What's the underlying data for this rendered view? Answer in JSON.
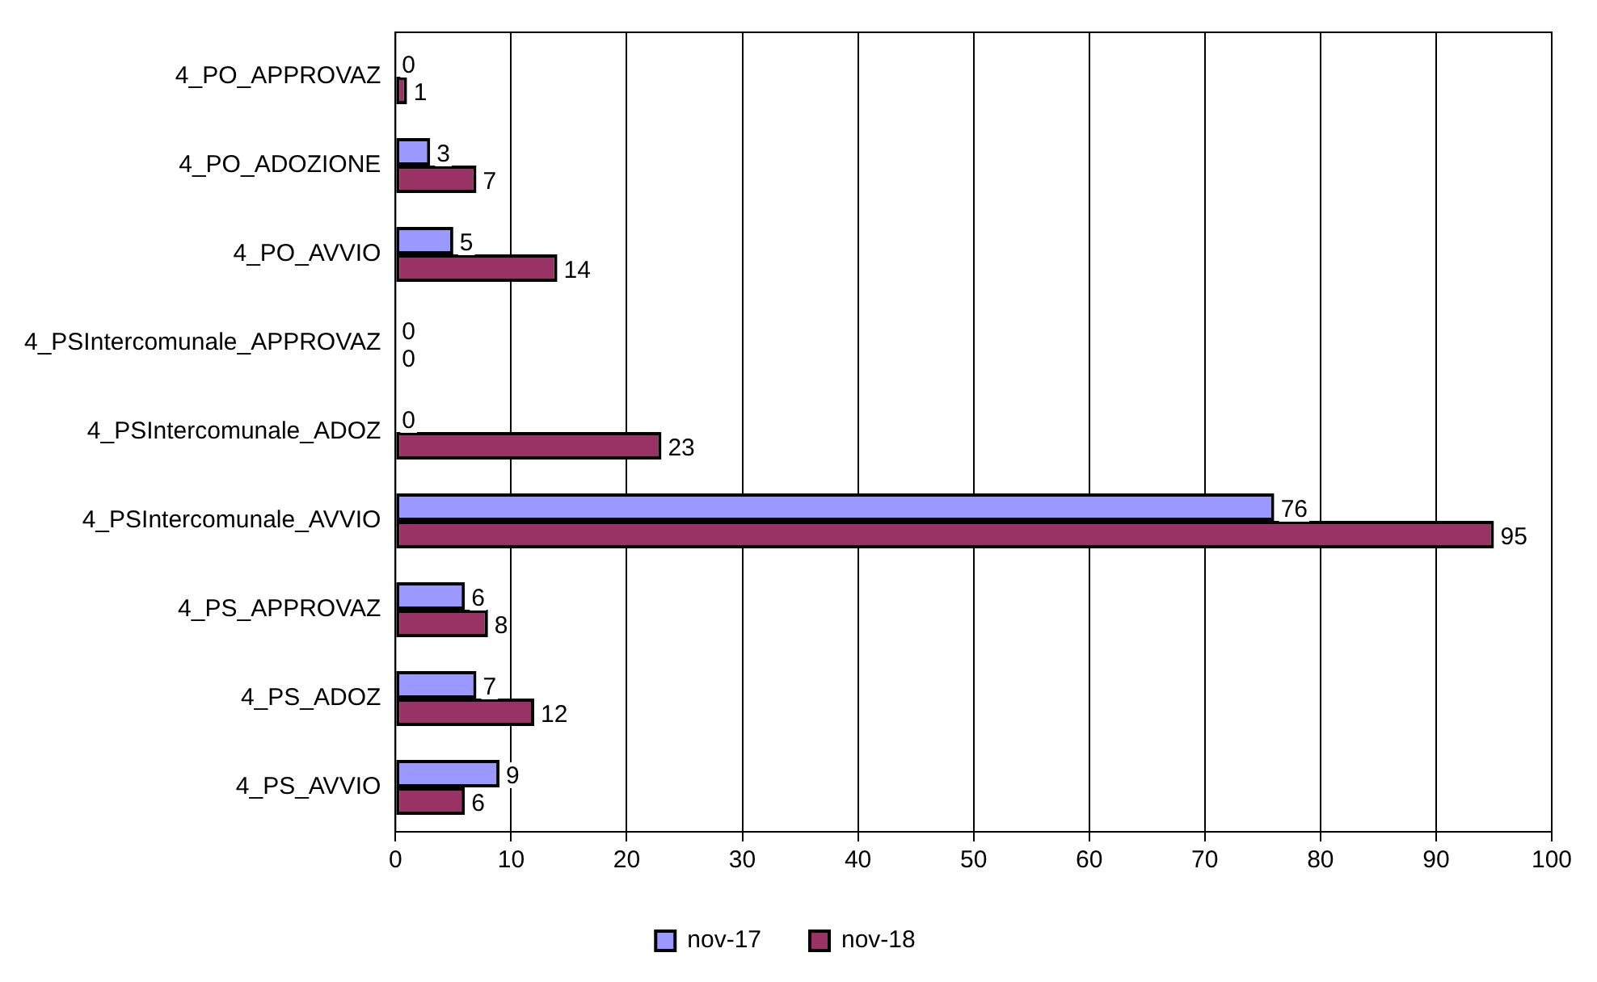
{
  "chart_data": {
    "type": "bar",
    "orientation": "horizontal",
    "categories": [
      "4_PO_APPROVAZ",
      "4_PO_ADOZIONE",
      "4_PO_AVVIO",
      "4_PSIntercomunale_APPROVAZ",
      "4_PSIntercomunale_ADOZ",
      "4_PSIntercomunale_AVVIO",
      "4_PS_APPROVAZ",
      "4_PS_ADOZ",
      "4_PS_AVVIO"
    ],
    "series": [
      {
        "name": "nov-17",
        "color": "#9999ff",
        "values": [
          0,
          3,
          5,
          0,
          0,
          76,
          6,
          7,
          9
        ]
      },
      {
        "name": "nov-18",
        "color": "#993366",
        "values": [
          1,
          7,
          14,
          0,
          23,
          95,
          8,
          12,
          6
        ]
      }
    ],
    "xlim": [
      0,
      100
    ],
    "xticks": [
      0,
      10,
      20,
      30,
      40,
      50,
      60,
      70,
      80,
      90,
      100
    ],
    "grid": "x",
    "legend": "bottom",
    "data_labels": true
  }
}
